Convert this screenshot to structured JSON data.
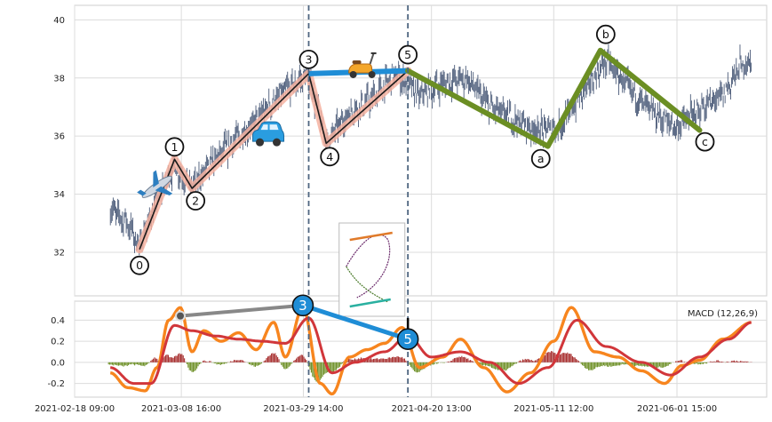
{
  "chart_data": {
    "type": "line",
    "x_tick_labels": [
      "2021-02-18 09:00",
      "2021-03-08 16:00",
      "2021-03-29 14:00",
      "2021-04-20 13:00",
      "2021-05-11 12:00",
      "2021-06-01 15:00"
    ],
    "price_panel": {
      "ylim": [
        30.5,
        40.5
      ],
      "y_ticks": [
        32,
        34,
        36,
        38,
        40
      ],
      "price_series_description_values": {
        "x_start": "2021-02-24",
        "x_end": "2021-06-14",
        "close_path": [
          {
            "x": "2021-02-24",
            "y": 33.5
          },
          {
            "x": "2021-02-27",
            "y": 33.0
          },
          {
            "x": "2021-03-01",
            "y": 32.2
          },
          {
            "x": "2021-03-04",
            "y": 33.8
          },
          {
            "x": "2021-03-07",
            "y": 35.0
          },
          {
            "x": "2021-03-10",
            "y": 34.2
          },
          {
            "x": "2021-03-13",
            "y": 35.0
          },
          {
            "x": "2021-03-17",
            "y": 35.8
          },
          {
            "x": "2021-03-20",
            "y": 36.3
          },
          {
            "x": "2021-03-23",
            "y": 37.0
          },
          {
            "x": "2021-03-27",
            "y": 37.7
          },
          {
            "x": "2021-03-30",
            "y": 38.1
          },
          {
            "x": "2021-04-02",
            "y": 35.8
          },
          {
            "x": "2021-04-06",
            "y": 36.8
          },
          {
            "x": "2021-04-10",
            "y": 37.3
          },
          {
            "x": "2021-04-14",
            "y": 38.1
          },
          {
            "x": "2021-04-18",
            "y": 37.4
          },
          {
            "x": "2021-04-22",
            "y": 37.8
          },
          {
            "x": "2021-04-26",
            "y": 38.0
          },
          {
            "x": "2021-04-30",
            "y": 37.0
          },
          {
            "x": "2021-05-04",
            "y": 36.6
          },
          {
            "x": "2021-05-08",
            "y": 36.2
          },
          {
            "x": "2021-05-12",
            "y": 36.3
          },
          {
            "x": "2021-05-16",
            "y": 37.5
          },
          {
            "x": "2021-05-20",
            "y": 38.6
          },
          {
            "x": "2021-05-24",
            "y": 37.6
          },
          {
            "x": "2021-05-28",
            "y": 36.8
          },
          {
            "x": "2021-06-01",
            "y": 36.3
          },
          {
            "x": "2021-06-05",
            "y": 36.9
          },
          {
            "x": "2021-06-09",
            "y": 37.4
          },
          {
            "x": "2021-06-12",
            "y": 38.4
          },
          {
            "x": "2021-06-14",
            "y": 38.6
          }
        ]
      },
      "wave_points": [
        {
          "label": "0",
          "x": "2021-03-01",
          "y": 32.1
        },
        {
          "label": "1",
          "x": "2021-03-07",
          "y": 35.2
        },
        {
          "label": "2",
          "x": "2021-03-10",
          "y": 34.2
        },
        {
          "label": "3",
          "x": "2021-03-30",
          "y": 38.15
        },
        {
          "label": "4",
          "x": "2021-04-02",
          "y": 35.75
        },
        {
          "label": "5",
          "x": "2021-04-16",
          "y": 38.25
        },
        {
          "label": "a",
          "x": "2021-05-10",
          "y": 35.65
        },
        {
          "label": "b",
          "x": "2021-05-19",
          "y": 38.95
        },
        {
          "label": "c",
          "x": "2021-06-05",
          "y": 36.2
        }
      ],
      "vertical_markers": [
        "2021-03-30",
        "2021-04-16"
      ],
      "icons": [
        {
          "name": "airplane",
          "x": "2021-03-04",
          "y": 34.25
        },
        {
          "name": "car",
          "x": "2021-03-23",
          "y": 36.0
        },
        {
          "name": "scooter",
          "x": "2021-04-08",
          "y": 38.3
        }
      ]
    },
    "macd_panel": {
      "legend": "MACD (12,26,9)",
      "ylim": [
        -0.33,
        0.58
      ],
      "y_ticks": [
        -0.2,
        0.0,
        0.2,
        0.4
      ],
      "macd_line": [
        {
          "x": "2021-02-24",
          "y": -0.1
        },
        {
          "x": "2021-02-27",
          "y": -0.24
        },
        {
          "x": "2021-03-02",
          "y": -0.27
        },
        {
          "x": "2021-03-04",
          "y": -0.05
        },
        {
          "x": "2021-03-06",
          "y": 0.4
        },
        {
          "x": "2021-03-08",
          "y": 0.52
        },
        {
          "x": "2021-03-10",
          "y": 0.1
        },
        {
          "x": "2021-03-12",
          "y": 0.3
        },
        {
          "x": "2021-03-15",
          "y": 0.2
        },
        {
          "x": "2021-03-18",
          "y": 0.28
        },
        {
          "x": "2021-03-21",
          "y": 0.12
        },
        {
          "x": "2021-03-24",
          "y": 0.38
        },
        {
          "x": "2021-03-26",
          "y": 0.05
        },
        {
          "x": "2021-03-29",
          "y": 0.52
        },
        {
          "x": "2021-04-01",
          "y": -0.2
        },
        {
          "x": "2021-04-03",
          "y": -0.3
        },
        {
          "x": "2021-04-06",
          "y": 0.05
        },
        {
          "x": "2021-04-09",
          "y": 0.12
        },
        {
          "x": "2021-04-12",
          "y": 0.18
        },
        {
          "x": "2021-04-15",
          "y": 0.33
        },
        {
          "x": "2021-04-18",
          "y": -0.05
        },
        {
          "x": "2021-04-22",
          "y": 0.05
        },
        {
          "x": "2021-04-25",
          "y": 0.22
        },
        {
          "x": "2021-04-29",
          "y": -0.05
        },
        {
          "x": "2021-05-03",
          "y": -0.28
        },
        {
          "x": "2021-05-07",
          "y": -0.1
        },
        {
          "x": "2021-05-11",
          "y": 0.2
        },
        {
          "x": "2021-05-14",
          "y": 0.52
        },
        {
          "x": "2021-05-18",
          "y": 0.1
        },
        {
          "x": "2021-05-22",
          "y": 0.05
        },
        {
          "x": "2021-05-26",
          "y": -0.08
        },
        {
          "x": "2021-05-30",
          "y": -0.2
        },
        {
          "x": "2021-06-02",
          "y": -0.03
        },
        {
          "x": "2021-06-05",
          "y": 0.02
        },
        {
          "x": "2021-06-09",
          "y": 0.22
        },
        {
          "x": "2021-06-14",
          "y": 0.38
        }
      ],
      "signal_line": [
        {
          "x": "2021-02-24",
          "y": -0.05
        },
        {
          "x": "2021-02-28",
          "y": -0.2
        },
        {
          "x": "2021-03-03",
          "y": -0.2
        },
        {
          "x": "2021-03-07",
          "y": 0.35
        },
        {
          "x": "2021-03-10",
          "y": 0.3
        },
        {
          "x": "2021-03-14",
          "y": 0.25
        },
        {
          "x": "2021-03-18",
          "y": 0.22
        },
        {
          "x": "2021-03-22",
          "y": 0.2
        },
        {
          "x": "2021-03-26",
          "y": 0.18
        },
        {
          "x": "2021-03-30",
          "y": 0.42
        },
        {
          "x": "2021-04-03",
          "y": -0.1
        },
        {
          "x": "2021-04-07",
          "y": 0.0
        },
        {
          "x": "2021-04-12",
          "y": 0.1
        },
        {
          "x": "2021-04-16",
          "y": 0.25
        },
        {
          "x": "2021-04-20",
          "y": 0.05
        },
        {
          "x": "2021-04-25",
          "y": 0.1
        },
        {
          "x": "2021-04-30",
          "y": 0.0
        },
        {
          "x": "2021-05-05",
          "y": -0.2
        },
        {
          "x": "2021-05-10",
          "y": -0.05
        },
        {
          "x": "2021-05-15",
          "y": 0.4
        },
        {
          "x": "2021-05-20",
          "y": 0.15
        },
        {
          "x": "2021-05-26",
          "y": 0.0
        },
        {
          "x": "2021-05-31",
          "y": -0.12
        },
        {
          "x": "2021-06-05",
          "y": 0.05
        },
        {
          "x": "2021-06-10",
          "y": 0.22
        },
        {
          "x": "2021-06-14",
          "y": 0.38
        }
      ],
      "macd_markers": [
        {
          "label": "",
          "x": "2021-03-08",
          "y": 0.44
        },
        {
          "label": "3",
          "x": "2021-03-29",
          "y": 0.54
        },
        {
          "label": "5",
          "x": "2021-04-16",
          "y": 0.22
        }
      ]
    },
    "colors": {
      "price_bars": "#4a5a78",
      "impulse_halo": "#f4b2a0",
      "impulse_line": "#1a1a1a",
      "correction_line": "#6b8e23",
      "connector_blue": "#1f8dd6",
      "connector_gray": "#888888",
      "marker_line": "#4f6680",
      "macd_orange": "#f7851e",
      "macd_red": "#d1363a",
      "hist_pos": "#a52a2a",
      "hist_neg": "#6b8e23",
      "grid": "#dcdcdc"
    }
  }
}
